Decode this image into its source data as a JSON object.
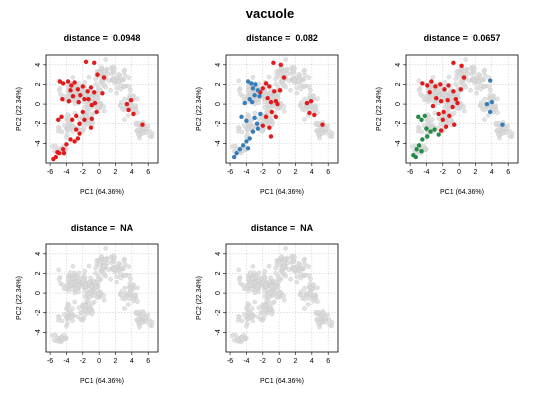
{
  "figure": {
    "title": "vacuole"
  },
  "colors": {
    "background": "#d9d9d9",
    "cluster_red": "#e31a1c",
    "cluster_blue": "#377eb8",
    "cluster_green": "#238b45",
    "grid": "#cccccc"
  },
  "chart_data": [
    {
      "type": "scatter",
      "title_label": "distance =",
      "title_value": "0.0948",
      "xlabel": "PC1 (64.36%)",
      "ylabel": "PC2 (22.34%)",
      "xlim": [
        -6.5,
        7.2
      ],
      "ylim": [
        -6.0,
        5.0
      ],
      "xticks": [
        -6,
        -4,
        -2,
        0,
        2,
        4,
        6
      ],
      "yticks": [
        -4,
        -2,
        0,
        2,
        4
      ],
      "grid": true,
      "highlight_series": [
        {
          "color": "red",
          "points": [
            [
              -4.8,
              2.3
            ],
            [
              -4.4,
              2.1
            ],
            [
              -3.8,
              2.3
            ],
            [
              -3.4,
              1.9
            ],
            [
              -3.0,
              2.2
            ],
            [
              -3.5,
              1.4
            ],
            [
              -4.5,
              0.5
            ],
            [
              -3.7,
              0.3
            ],
            [
              -3.2,
              0.8
            ],
            [
              -2.6,
              1.5
            ],
            [
              -2.3,
              0.9
            ],
            [
              -2.0,
              1.8
            ],
            [
              -1.8,
              0.5
            ],
            [
              -1.4,
              1.3
            ],
            [
              -1.0,
              1.7
            ],
            [
              -0.6,
              1.2
            ],
            [
              -0.5,
              0.1
            ],
            [
              -0.9,
              -0.1
            ],
            [
              -1.3,
              0.5
            ],
            [
              -2.5,
              0.2
            ],
            [
              -2.8,
              -1.2
            ],
            [
              -3.3,
              -1.6
            ],
            [
              -4.6,
              -1.3
            ],
            [
              -5.0,
              -1.6
            ],
            [
              -2.4,
              -2.0
            ],
            [
              -2.8,
              -2.6
            ],
            [
              -1.8,
              -1.6
            ],
            [
              -0.9,
              -1.5
            ],
            [
              -1.0,
              -2.4
            ],
            [
              -3.0,
              -3.8
            ],
            [
              -3.5,
              -3.6
            ],
            [
              -2.6,
              -3.5
            ],
            [
              -4.0,
              -4.1
            ],
            [
              -4.4,
              -4.6
            ],
            [
              -4.9,
              -5.0
            ],
            [
              -5.3,
              -5.4
            ],
            [
              -5.1,
              -4.9
            ],
            [
              -5.6,
              -5.6
            ],
            [
              -4.3,
              -5.0
            ],
            [
              -1.6,
              4.3
            ],
            [
              -0.6,
              4.2
            ],
            [
              -0.2,
              3.0
            ],
            [
              0.6,
              2.7
            ],
            [
              -0.3,
              -0.8
            ],
            [
              3.4,
              0.0
            ],
            [
              3.9,
              0.4
            ],
            [
              3.6,
              -0.6
            ],
            [
              4.2,
              -1.0
            ],
            [
              5.3,
              -2.1
            ],
            [
              0.4,
              1.1
            ],
            [
              -2.0,
              -0.8
            ],
            [
              -2.4,
              -3.0
            ]
          ]
        }
      ]
    },
    {
      "type": "scatter",
      "title_label": "distance =",
      "title_value": "0.082",
      "xlabel": "PC1 (64.36%)",
      "ylabel": "PC2 (22.34%)",
      "xlim": [
        -6.5,
        7.2
      ],
      "ylim": [
        -6.0,
        5.0
      ],
      "xticks": [
        -6,
        -4,
        -2,
        0,
        2,
        4,
        6
      ],
      "yticks": [
        -4,
        -2,
        0,
        2,
        4
      ],
      "grid": true,
      "highlight_series": [
        {
          "color": "red",
          "points": [
            [
              -1.6,
              2.1
            ],
            [
              -1.2,
              1.8
            ],
            [
              -0.6,
              1.3
            ],
            [
              -0.4,
              0.3
            ],
            [
              -1.0,
              0.2
            ],
            [
              -0.9,
              -0.8
            ],
            [
              -1.6,
              -1.3
            ],
            [
              -2.0,
              -2.2
            ],
            [
              -1.2,
              -2.4
            ],
            [
              -0.4,
              -1.3
            ],
            [
              -1.0,
              -3.3
            ],
            [
              -0.7,
              4.2
            ],
            [
              0.2,
              4.0
            ],
            [
              0.6,
              2.7
            ],
            [
              0.1,
              1.4
            ],
            [
              -0.2,
              0.0
            ],
            [
              3.4,
              0.1
            ],
            [
              3.9,
              0.3
            ],
            [
              3.7,
              -0.9
            ],
            [
              4.3,
              -1.1
            ],
            [
              5.3,
              -2.1
            ],
            [
              -2.0,
              1.6
            ],
            [
              -1.4,
              0.6
            ],
            [
              -2.3,
              1.2
            ]
          ]
        },
        {
          "color": "blue",
          "points": [
            [
              -3.8,
              2.3
            ],
            [
              -3.4,
              2.1
            ],
            [
              -2.9,
              2.0
            ],
            [
              -3.2,
              1.6
            ],
            [
              -2.6,
              1.4
            ],
            [
              -2.4,
              0.8
            ],
            [
              -3.0,
              0.9
            ],
            [
              -3.6,
              0.5
            ],
            [
              -4.2,
              0.1
            ],
            [
              -4.6,
              -1.3
            ],
            [
              -4.0,
              -1.7
            ],
            [
              -3.0,
              -1.4
            ],
            [
              -2.7,
              -2.0
            ],
            [
              -3.2,
              -2.8
            ],
            [
              -3.6,
              -3.5
            ],
            [
              -4.0,
              -3.8
            ],
            [
              -4.4,
              -4.2
            ],
            [
              -4.8,
              -4.6
            ],
            [
              -5.2,
              -5.0
            ],
            [
              -5.5,
              -5.4
            ],
            [
              -2.6,
              -2.5
            ],
            [
              -3.8,
              -4.5
            ],
            [
              -2.3,
              -1.0
            ],
            [
              -3.3,
              0.2
            ]
          ]
        }
      ]
    },
    {
      "type": "scatter",
      "title_label": "distance =",
      "title_value": "0.0657",
      "xlabel": "PC1 (64.36%)",
      "ylabel": "PC2 (22.34%)",
      "xlim": [
        -6.5,
        7.2
      ],
      "ylim": [
        -6.0,
        5.0
      ],
      "xticks": [
        -6,
        -4,
        -2,
        0,
        2,
        4,
        6
      ],
      "yticks": [
        -4,
        -2,
        0,
        2,
        4
      ],
      "grid": true,
      "highlight_series": [
        {
          "color": "red",
          "points": [
            [
              -4.5,
              2.1
            ],
            [
              -3.9,
              1.9
            ],
            [
              -3.4,
              2.3
            ],
            [
              -2.9,
              1.8
            ],
            [
              -2.3,
              2.0
            ],
            [
              -1.8,
              1.5
            ],
            [
              -1.3,
              1.9
            ],
            [
              -0.7,
              1.3
            ],
            [
              -0.4,
              0.5
            ],
            [
              -0.8,
              -0.3
            ],
            [
              -1.4,
              0.4
            ],
            [
              -2.2,
              0.3
            ],
            [
              -2.8,
              0.6
            ],
            [
              -3.2,
              -0.2
            ],
            [
              -2.5,
              -1.0
            ],
            [
              -1.9,
              -0.8
            ],
            [
              -1.2,
              -1.2
            ],
            [
              -0.6,
              -2.1
            ],
            [
              -1.6,
              -2.3
            ],
            [
              -2.2,
              -2.7
            ],
            [
              -0.7,
              4.2
            ],
            [
              0.3,
              3.9
            ],
            [
              0.6,
              2.7
            ],
            [
              0.2,
              1.5
            ],
            [
              -0.2,
              0.1
            ],
            [
              -2.0,
              -1.6
            ],
            [
              -3.6,
              1.2
            ]
          ]
        },
        {
          "color": "blue",
          "points": [
            [
              3.4,
              0.0
            ],
            [
              4.0,
              0.2
            ],
            [
              3.8,
              -0.8
            ],
            [
              3.8,
              2.4
            ],
            [
              5.3,
              -2.1
            ]
          ]
        },
        {
          "color": "green",
          "points": [
            [
              -5.0,
              -1.3
            ],
            [
              -4.6,
              -1.6
            ],
            [
              -4.2,
              -1.2
            ],
            [
              -4.0,
              -2.5
            ],
            [
              -3.5,
              -2.8
            ],
            [
              -3.0,
              -2.6
            ],
            [
              -4.5,
              -3.6
            ],
            [
              -4.9,
              -4.2
            ],
            [
              -5.2,
              -4.6
            ],
            [
              -5.6,
              -5.2
            ],
            [
              -5.3,
              -5.4
            ],
            [
              -4.6,
              -4.8
            ],
            [
              -3.9,
              -3.3
            ],
            [
              -2.5,
              -3.1
            ]
          ]
        }
      ]
    },
    {
      "type": "scatter",
      "title_label": "distance =",
      "title_value": "NA",
      "xlabel": "PC1 (64.36%)",
      "ylabel": "PC2 (22.34%)",
      "xlim": [
        -6.5,
        7.2
      ],
      "ylim": [
        -6.0,
        5.0
      ],
      "xticks": [
        -6,
        -4,
        -2,
        0,
        2,
        4,
        6
      ],
      "yticks": [
        -4,
        -2,
        0,
        2,
        4
      ],
      "grid": true,
      "highlight_series": []
    },
    {
      "type": "scatter",
      "title_label": "distance =",
      "title_value": "NA",
      "xlabel": "PC1 (64.36%)",
      "ylabel": "PC2 (22.34%)",
      "xlim": [
        -6.5,
        7.2
      ],
      "ylim": [
        -6.0,
        5.0
      ],
      "xticks": [
        -6,
        -4,
        -2,
        0,
        2,
        4,
        6
      ],
      "yticks": [
        -4,
        -2,
        0,
        2,
        4
      ],
      "grid": true,
      "highlight_series": []
    }
  ]
}
